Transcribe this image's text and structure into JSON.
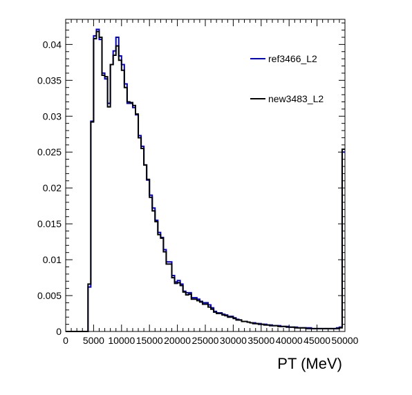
{
  "chart_data": {
    "type": "line",
    "step": true,
    "xlabel": "PT (MeV)",
    "ylabel": "",
    "title": "",
    "xlim": [
      0,
      50000
    ],
    "ylim": [
      0,
      0.0435
    ],
    "grid": false,
    "legend_position": "top-right",
    "x_ticks": [
      0,
      5000,
      10000,
      15000,
      20000,
      25000,
      30000,
      35000,
      40000,
      45000,
      50000
    ],
    "x_tick_labels": [
      "0",
      "5000",
      "10000",
      "15000",
      "20000",
      "25000",
      "30000",
      "35000",
      "40000",
      "45000",
      "50000"
    ],
    "y_ticks": [
      0,
      0.005,
      0.01,
      0.015,
      0.02,
      0.025,
      0.03,
      0.035,
      0.04
    ],
    "y_tick_labels": [
      "0",
      "0.005",
      "0.01",
      "0.015",
      "0.02",
      "0.025",
      "0.03",
      "0.035",
      "0.04"
    ],
    "bin_width": 500,
    "x": [
      250,
      750,
      1250,
      1750,
      2250,
      2750,
      3250,
      3750,
      4250,
      4750,
      5250,
      5750,
      6250,
      6750,
      7250,
      7750,
      8250,
      8750,
      9250,
      9750,
      10250,
      10750,
      11250,
      11750,
      12250,
      12750,
      13250,
      13750,
      14250,
      14750,
      15250,
      15750,
      16250,
      16750,
      17250,
      17750,
      18250,
      18750,
      19250,
      19750,
      20250,
      20750,
      21250,
      21750,
      22250,
      22750,
      23250,
      23750,
      24250,
      24750,
      25250,
      25750,
      26250,
      26750,
      27250,
      27750,
      28250,
      28750,
      29250,
      29750,
      30250,
      30750,
      31250,
      31750,
      32250,
      32750,
      33250,
      33750,
      34250,
      34750,
      35250,
      35750,
      36250,
      36750,
      37250,
      37750,
      38250,
      38750,
      39250,
      39750,
      40250,
      40750,
      41250,
      41750,
      42250,
      42750,
      43250,
      43750,
      44250,
      44750,
      45250,
      45750,
      46250,
      46750,
      47250,
      47750,
      48250,
      48750,
      49250,
      49750
    ],
    "series": [
      {
        "name": "ref3466_L2",
        "color": "#0000cc",
        "values": [
          0,
          0,
          0,
          0,
          0,
          0,
          0,
          0,
          0.0062,
          0.0293,
          0.0412,
          0.0421,
          0.0407,
          0.036,
          0.0352,
          0.0318,
          0.0372,
          0.0391,
          0.041,
          0.0384,
          0.0372,
          0.0345,
          0.0318,
          0.0318,
          0.0312,
          0.0302,
          0.0273,
          0.0258,
          0.0232,
          0.0211,
          0.019,
          0.0172,
          0.0155,
          0.0138,
          0.0131,
          0.0114,
          0.0097,
          0.0097,
          0.0078,
          0.0069,
          0.0071,
          0.0066,
          0.0056,
          0.0054,
          0.0054,
          0.0047,
          0.0047,
          0.0045,
          0.0042,
          0.004,
          0.004,
          0.0037,
          0.0033,
          0.0028,
          0.0026,
          0.0026,
          0.0024,
          0.0023,
          0.0021,
          0.0021,
          0.0019,
          0.0017,
          0.0016,
          0.0014,
          0.0014,
          0.0013,
          0.0012,
          0.0012,
          0.0011,
          0.0011,
          0.001,
          0.001,
          0.0009,
          0.0009,
          0.0008,
          0.0008,
          0.0008,
          0.0007,
          0.0007,
          0.0007,
          0.0006,
          0.0006,
          0.0006,
          0.0005,
          0.0005,
          0.0005,
          0.0005,
          0.0005,
          0.0004,
          0.0004,
          0.0004,
          0.0004,
          0.0004,
          0.0004,
          0.0004,
          0.0004,
          0.0004,
          0.0005,
          0.0006,
          0.025
        ]
      },
      {
        "name": "new3483_L2",
        "color": "#000000",
        "values": [
          0,
          0,
          0,
          0,
          0,
          0,
          0,
          0,
          0.0066,
          0.0292,
          0.0408,
          0.0418,
          0.041,
          0.0357,
          0.0355,
          0.0313,
          0.0372,
          0.0385,
          0.0398,
          0.0378,
          0.0364,
          0.034,
          0.032,
          0.0319,
          0.0315,
          0.0303,
          0.027,
          0.0255,
          0.0232,
          0.0212,
          0.0187,
          0.0168,
          0.0153,
          0.0135,
          0.013,
          0.0111,
          0.0094,
          0.0094,
          0.0075,
          0.0067,
          0.0068,
          0.0064,
          0.0055,
          0.0051,
          0.0052,
          0.0045,
          0.0045,
          0.0043,
          0.0041,
          0.0038,
          0.0038,
          0.0034,
          0.0031,
          0.0027,
          0.0025,
          0.0025,
          0.0023,
          0.0022,
          0.002,
          0.002,
          0.0018,
          0.0016,
          0.0016,
          0.0014,
          0.0014,
          0.0013,
          0.0012,
          0.0011,
          0.0011,
          0.001,
          0.001,
          0.0009,
          0.0009,
          0.0008,
          0.0008,
          0.0008,
          0.0007,
          0.0007,
          0.0007,
          0.0006,
          0.0006,
          0.0006,
          0.0005,
          0.0005,
          0.0005,
          0.0005,
          0.0004,
          0.0004,
          0.0004,
          0.0004,
          0.0004,
          0.0004,
          0.0004,
          0.0004,
          0.0004,
          0.0004,
          0.0004,
          0.0004,
          0.0005,
          0.0254
        ]
      }
    ]
  }
}
